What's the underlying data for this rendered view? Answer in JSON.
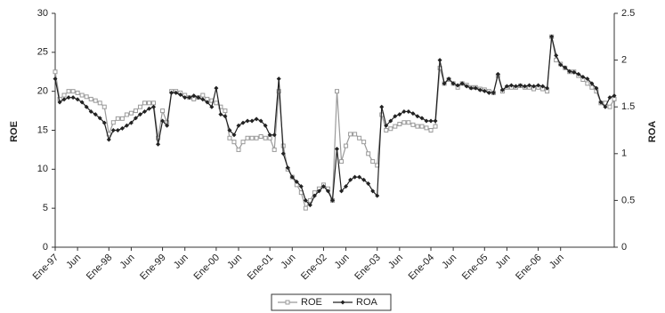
{
  "chart_data": {
    "type": "line",
    "y_label": "ROE",
    "y2_label": "ROA",
    "categories": [
      "Ene-97",
      null,
      null,
      null,
      null,
      "Jun",
      null,
      null,
      null,
      null,
      null,
      null,
      "Ene-98",
      null,
      null,
      null,
      null,
      "Jun",
      null,
      null,
      null,
      null,
      null,
      null,
      "Ene-99",
      null,
      null,
      null,
      null,
      "Jun",
      null,
      null,
      null,
      null,
      null,
      null,
      "Ene-00",
      null,
      null,
      null,
      null,
      "Jun",
      null,
      null,
      null,
      null,
      null,
      null,
      "Ene-01",
      null,
      null,
      null,
      null,
      "Jun",
      null,
      null,
      null,
      null,
      null,
      null,
      "Ene-02",
      null,
      null,
      null,
      null,
      "Jun",
      null,
      null,
      null,
      null,
      null,
      null,
      "Ene-03",
      null,
      null,
      null,
      null,
      "Jun",
      null,
      null,
      null,
      null,
      null,
      null,
      "Ene-04",
      null,
      null,
      null,
      null,
      "Jun",
      null,
      null,
      null,
      null,
      null,
      null,
      "Ene-05",
      null,
      null,
      null,
      null,
      "Jun",
      null,
      null,
      null,
      null,
      null,
      null,
      "Ene-06",
      null,
      null,
      null,
      null,
      "Jun",
      null,
      null,
      null,
      null,
      null,
      null,
      null,
      null,
      null,
      null,
      null,
      null
    ],
    "series": [
      {
        "name": "ROE",
        "color": "#9a9a9a",
        "marker": "square",
        "values": [
          22.5,
          19,
          19.5,
          20,
          20,
          19.8,
          19.5,
          19.3,
          19,
          18.8,
          18.5,
          18,
          14.5,
          16,
          16.5,
          16.5,
          17,
          17.2,
          17.5,
          18,
          18.5,
          18.5,
          18.5,
          14,
          17.5,
          16,
          20,
          20,
          19.8,
          19.5,
          19.2,
          19,
          19.2,
          19.5,
          19,
          18.8,
          18.5,
          18,
          17.5,
          14,
          13.5,
          12.5,
          13.5,
          14,
          14,
          14,
          14.2,
          14,
          14,
          12.5,
          20,
          13,
          10,
          9,
          8,
          7,
          5,
          6,
          7,
          7.5,
          8,
          7.5,
          6,
          20,
          11,
          13,
          14.5,
          14.5,
          14,
          13.5,
          12,
          11,
          10.5,
          17,
          15,
          15.2,
          15.5,
          15.8,
          16,
          16,
          15.7,
          15.5,
          15.5,
          15.3,
          15,
          15.5,
          23,
          21,
          21.5,
          21,
          20.5,
          21,
          20.8,
          20.5,
          20.5,
          20.3,
          20.2,
          20,
          19.8,
          22,
          20,
          20.5,
          20.5,
          20.5,
          20.7,
          20.5,
          20.5,
          20.3,
          20.5,
          20.3,
          20,
          27,
          24,
          23.5,
          23,
          22.5,
          22.5,
          22,
          21.5,
          21,
          20.5,
          20,
          18.5,
          18.5,
          18,
          19
        ]
      },
      {
        "name": "ROA",
        "color": "#222222",
        "marker": "diamond",
        "axis": "y2",
        "values": [
          1.8,
          1.55,
          1.58,
          1.6,
          1.6,
          1.58,
          1.55,
          1.5,
          1.45,
          1.42,
          1.38,
          1.33,
          1.15,
          1.25,
          1.25,
          1.27,
          1.3,
          1.33,
          1.38,
          1.42,
          1.45,
          1.48,
          1.5,
          1.1,
          1.35,
          1.3,
          1.65,
          1.65,
          1.63,
          1.6,
          1.6,
          1.62,
          1.6,
          1.58,
          1.55,
          1.5,
          1.7,
          1.42,
          1.4,
          1.25,
          1.2,
          1.3,
          1.33,
          1.35,
          1.35,
          1.37,
          1.35,
          1.3,
          1.2,
          1.2,
          1.8,
          1.0,
          0.85,
          0.75,
          0.7,
          0.65,
          0.5,
          0.45,
          0.55,
          0.6,
          0.65,
          0.6,
          0.5,
          1.05,
          0.6,
          0.65,
          0.72,
          0.75,
          0.75,
          0.72,
          0.68,
          0.6,
          0.55,
          1.5,
          1.3,
          1.35,
          1.4,
          1.42,
          1.45,
          1.45,
          1.43,
          1.4,
          1.38,
          1.35,
          1.35,
          1.35,
          2.0,
          1.75,
          1.8,
          1.75,
          1.73,
          1.75,
          1.72,
          1.7,
          1.7,
          1.68,
          1.67,
          1.65,
          1.65,
          1.85,
          1.68,
          1.72,
          1.73,
          1.72,
          1.73,
          1.72,
          1.73,
          1.72,
          1.73,
          1.72,
          1.7,
          2.25,
          2.05,
          1.95,
          1.92,
          1.88,
          1.87,
          1.85,
          1.82,
          1.8,
          1.75,
          1.7,
          1.55,
          1.5,
          1.6,
          1.62
        ]
      }
    ],
    "ylim": [
      0,
      30
    ],
    "yticks": [
      0,
      5,
      10,
      15,
      20,
      25,
      30
    ],
    "y2lim": [
      0,
      2.5
    ],
    "y2ticks": [
      0,
      0.5,
      1,
      1.5,
      2,
      2.5
    ],
    "legend": "bottom"
  }
}
